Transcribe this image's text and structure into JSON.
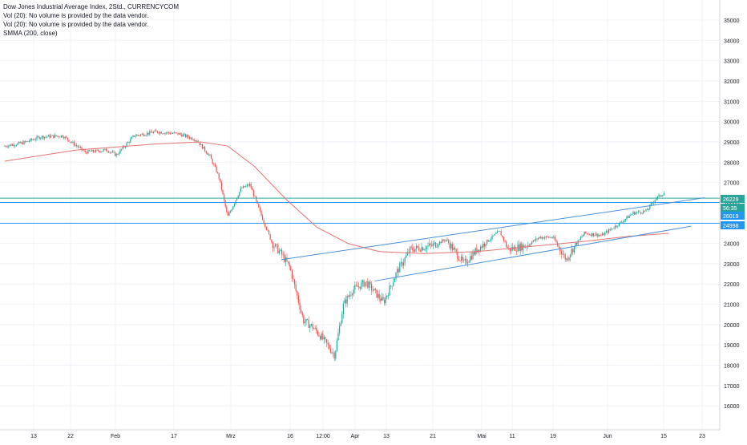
{
  "legend": {
    "title": "Dow Jones Industrial Average Index, 2Std., CURRENCYCOM",
    "vol1": "Vol (20): No volume is provided by the data vendor.",
    "vol2": "Vol (20): No volume is provided by the data vendor.",
    "smma": "SMMA (200, close)"
  },
  "chart_data": {
    "type": "candlestick",
    "title": "Dow Jones Industrial Average Index, 2Std., CURRENCYCOM",
    "ylim": [
      15200,
      35800
    ],
    "y_ticks": [
      16000,
      17000,
      18000,
      19000,
      20000,
      21000,
      22000,
      23000,
      24000,
      25000,
      26000,
      27000,
      28000,
      29000,
      30000,
      31000,
      32000,
      33000,
      34000,
      35000
    ],
    "x_ticks": [
      "13",
      "22",
      "Feb",
      "17",
      "Mrz",
      "16",
      "12:00",
      "Apr",
      "13",
      "21",
      "Mai",
      "11",
      "19",
      "Jun",
      "15",
      "23"
    ],
    "price_path": [
      [
        "2020-01-09",
        28800
      ],
      [
        "2020-01-13",
        28950
      ],
      [
        "2020-01-17",
        29250
      ],
      [
        "2020-01-22",
        29300
      ],
      [
        "2020-01-27",
        28500
      ],
      [
        "2020-02-01",
        28600
      ],
      [
        "2020-02-03",
        28350
      ],
      [
        "2020-02-07",
        29300
      ],
      [
        "2020-02-12",
        29500
      ],
      [
        "2020-02-17",
        29400
      ],
      [
        "2020-02-21",
        29100
      ],
      [
        "2020-02-24",
        28300
      ],
      [
        "2020-02-26",
        27300
      ],
      [
        "2020-02-28",
        25300
      ],
      [
        "2020-03-02",
        26700
      ],
      [
        "2020-03-04",
        26900
      ],
      [
        "2020-03-06",
        25700
      ],
      [
        "2020-03-09",
        24000
      ],
      [
        "2020-03-11",
        23500
      ],
      [
        "2020-03-13",
        22800
      ],
      [
        "2020-03-16",
        20200
      ],
      [
        "2020-03-18",
        19900
      ],
      [
        "2020-03-20",
        19400
      ],
      [
        "2020-03-23",
        18500
      ],
      [
        "2020-03-25",
        21000
      ],
      [
        "2020-03-27",
        21700
      ],
      [
        "2020-03-30",
        22100
      ],
      [
        "2020-04-01",
        21600
      ],
      [
        "2020-04-03",
        21100
      ],
      [
        "2020-04-06",
        22600
      ],
      [
        "2020-04-09",
        23700
      ],
      [
        "2020-04-14",
        23900
      ],
      [
        "2020-04-17",
        24200
      ],
      [
        "2020-04-21",
        23000
      ],
      [
        "2020-04-24",
        23700
      ],
      [
        "2020-04-29",
        24600
      ],
      [
        "2020-05-01",
        23700
      ],
      [
        "2020-05-05",
        23900
      ],
      [
        "2020-05-08",
        24300
      ],
      [
        "2020-05-11",
        24300
      ],
      [
        "2020-05-14",
        23200
      ],
      [
        "2020-05-15",
        23600
      ],
      [
        "2020-05-18",
        24500
      ],
      [
        "2020-05-22",
        24400
      ],
      [
        "2020-05-26",
        25000
      ],
      [
        "2020-05-29",
        25500
      ],
      [
        "2020-06-01",
        25600
      ],
      [
        "2020-06-03",
        26200
      ],
      [
        "2020-06-05",
        26500
      ]
    ],
    "smma": [
      [
        "2020-01-09",
        28050
      ],
      [
        "2020-01-25",
        28600
      ],
      [
        "2020-02-12",
        28900
      ],
      [
        "2020-02-22",
        29000
      ],
      [
        "2020-02-28",
        28800
      ],
      [
        "2020-03-05",
        27800
      ],
      [
        "2020-03-12",
        26200
      ],
      [
        "2020-03-19",
        24800
      ],
      [
        "2020-03-26",
        24000
      ],
      [
        "2020-04-02",
        23600
      ],
      [
        "2020-04-12",
        23500
      ],
      [
        "2020-04-24",
        23600
      ],
      [
        "2020-05-06",
        23850
      ],
      [
        "2020-05-18",
        24100
      ],
      [
        "2020-05-28",
        24350
      ],
      [
        "2020-06-06",
        24500
      ]
    ],
    "trendlines": [
      {
        "name": "upper-channel",
        "from": [
          "2020-03-11",
          23200
        ],
        "to": [
          "2020-06-14",
          26250
        ],
        "color": "#4a90d9"
      },
      {
        "name": "lower-channel",
        "from": [
          "2020-04-01",
          22150
        ],
        "to": [
          "2020-06-11",
          24850
        ],
        "color": "#4a90d9"
      }
    ],
    "hlines": [
      {
        "value": 26229,
        "color": "#26a69a"
      },
      {
        "value": 26019,
        "color": "#2196f3"
      },
      {
        "value": 24998,
        "color": "#2196f3"
      }
    ],
    "price_labels": [
      {
        "text": "26229",
        "value": 26229,
        "color": "#26a69a"
      },
      {
        "text": "56:35",
        "value": 26210,
        "color": "#26a69a"
      },
      {
        "text": "26019",
        "value": 26019,
        "color": "#2196f3"
      },
      {
        "text": "24998",
        "value": 24998,
        "color": "#2196f3"
      }
    ],
    "colors": {
      "up": "#26a69a",
      "down": "#ef5350",
      "smma": "#e57373",
      "grid": "#f0f3fa",
      "axis_text": "#131722"
    }
  }
}
